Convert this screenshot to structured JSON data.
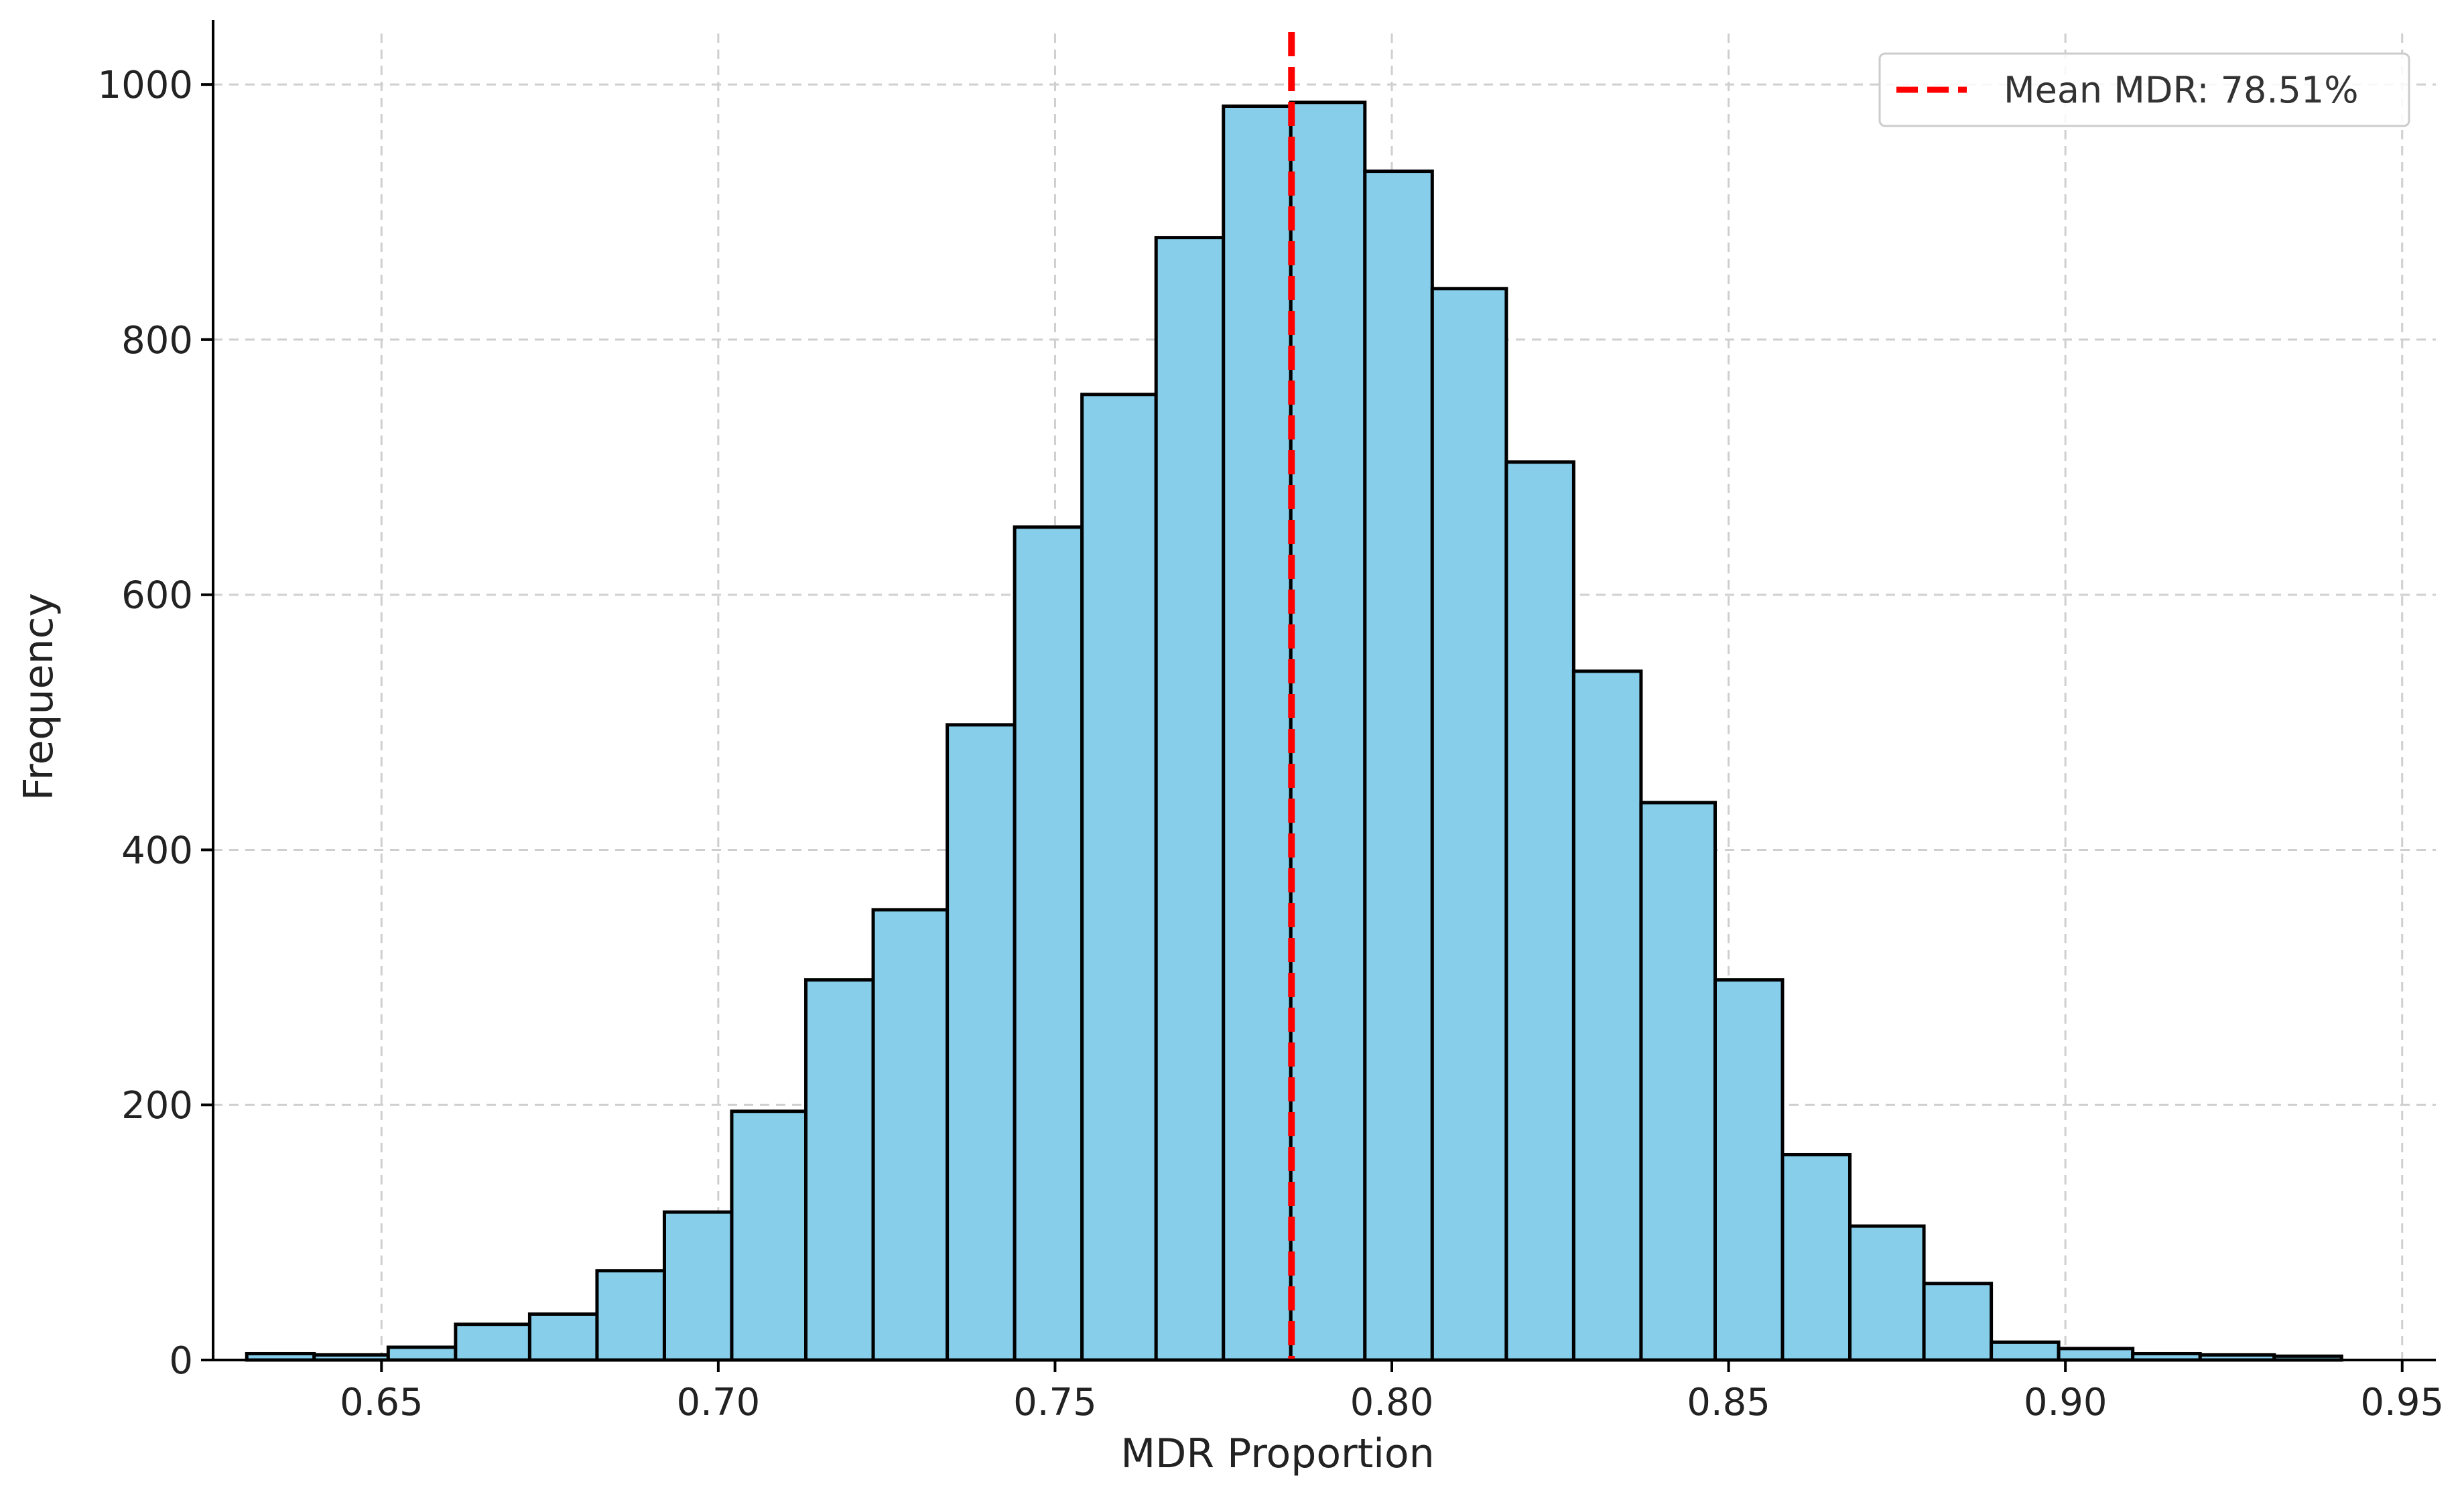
{
  "chart_data": {
    "type": "bar",
    "xlabel": "MDR Proportion",
    "ylabel": "Frequency",
    "xlim": [
      0.625,
      0.955
    ],
    "ylim": [
      0,
      1040
    ],
    "xticks": [
      "0.65",
      "0.70",
      "0.75",
      "0.80",
      "0.85",
      "0.90",
      "0.95"
    ],
    "xtick_values": [
      0.65,
      0.7,
      0.75,
      0.8,
      0.85,
      0.9,
      0.95
    ],
    "yticks": [
      "0",
      "200",
      "400",
      "600",
      "800",
      "1000"
    ],
    "ytick_values": [
      0,
      200,
      400,
      600,
      800,
      1000
    ],
    "grid": true,
    "bin_edges": [
      0.63,
      0.64,
      0.651,
      0.661,
      0.672,
      0.682,
      0.692,
      0.702,
      0.713,
      0.723,
      0.734,
      0.744,
      0.754,
      0.765,
      0.775,
      0.785,
      0.796,
      0.806,
      0.817,
      0.827,
      0.837,
      0.848,
      0.858,
      0.868,
      0.879,
      0.889,
      0.899,
      0.91,
      0.92,
      0.931,
      0.941
    ],
    "values": [
      5,
      4,
      10,
      28,
      36,
      70,
      116,
      195,
      298,
      353,
      498,
      653,
      757,
      880,
      983,
      986,
      932,
      840,
      704,
      540,
      437,
      298,
      161,
      105,
      60,
      14,
      9,
      5,
      4,
      3
    ],
    "bar_color": "#87ceeb",
    "bar_edge_color": "#000000",
    "mean_line": {
      "x": 0.7851,
      "color": "#ff0000",
      "style": "dashed"
    },
    "legend": {
      "position": "top-right",
      "label": "Mean MDR: 78.51%"
    }
  }
}
